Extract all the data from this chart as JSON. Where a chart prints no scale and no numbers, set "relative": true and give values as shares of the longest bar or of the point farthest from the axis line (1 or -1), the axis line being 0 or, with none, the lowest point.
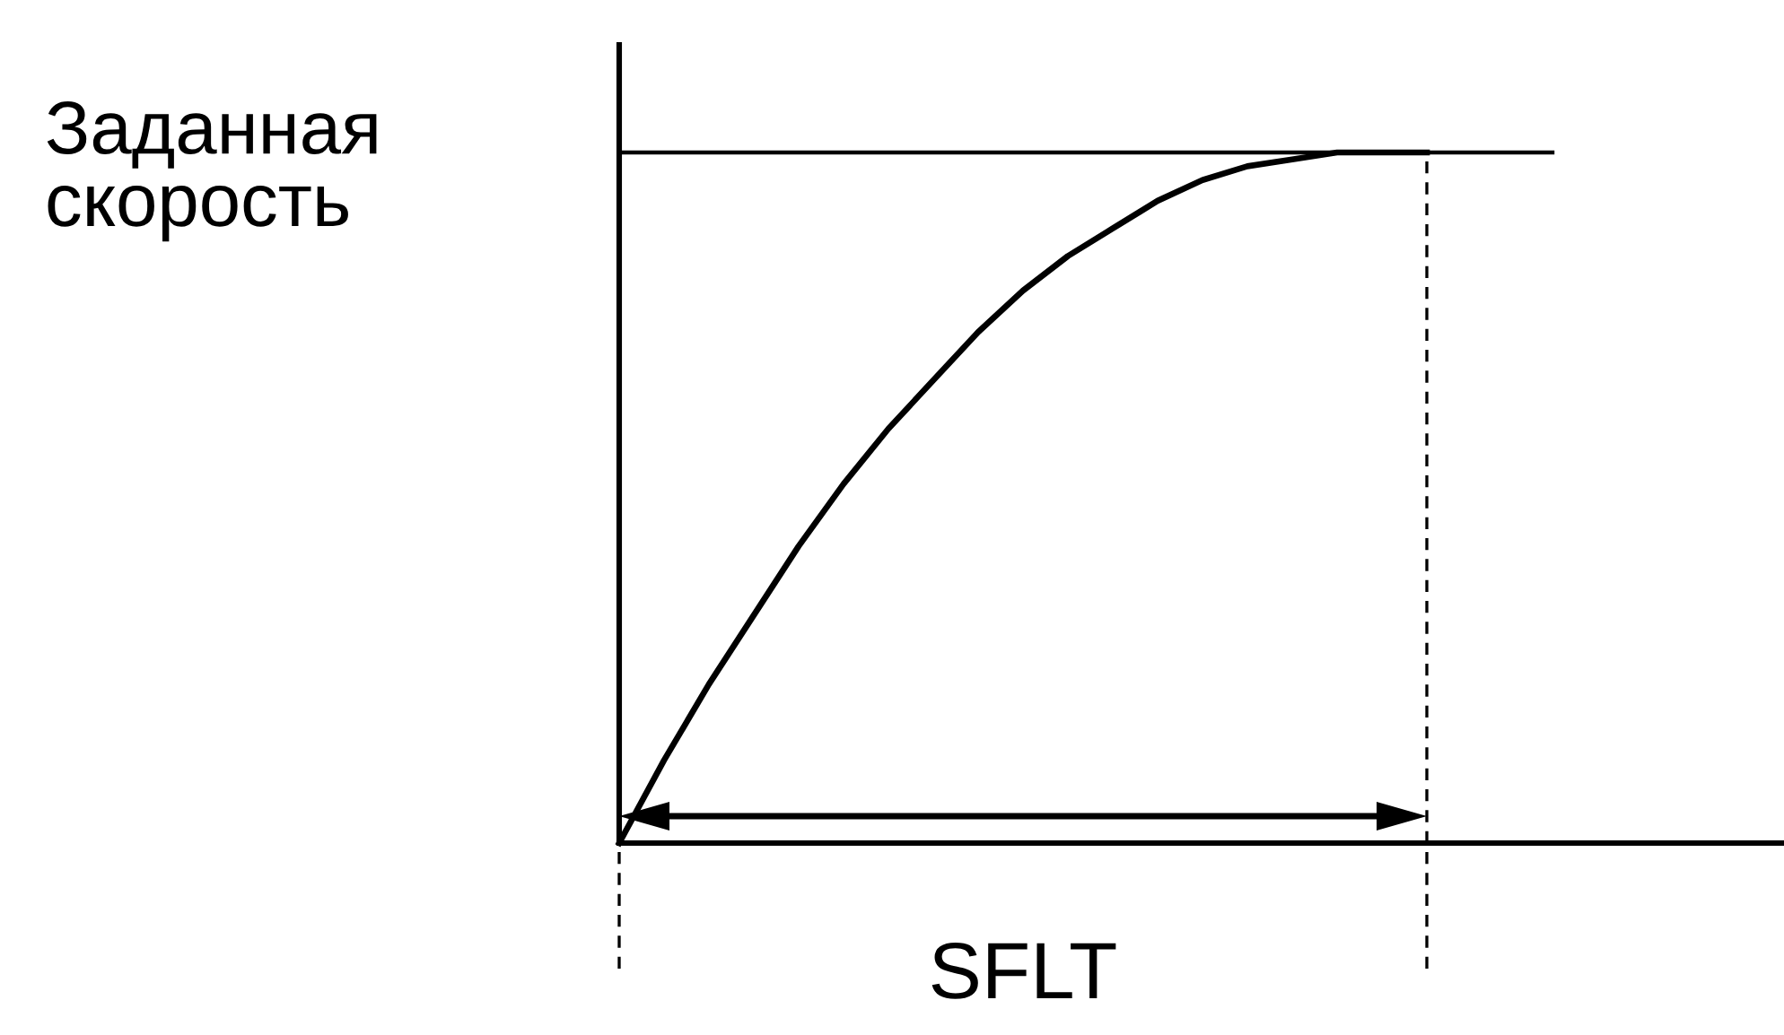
{
  "chart_data": {
    "type": "line",
    "relative": true,
    "ylabel": "Заданная скорость",
    "categories": [
      null,
      null,
      null,
      null,
      null,
      null,
      null,
      null,
      null,
      null,
      null,
      null,
      null,
      null,
      null,
      null,
      null,
      null,
      null
    ],
    "series": [
      {
        "color": "#000000",
        "values": [
          0,
          0.12,
          0.23,
          0.33,
          0.43,
          0.52,
          0.6,
          0.67,
          0.74,
          0.8,
          0.85,
          0.89,
          0.93,
          0.96,
          0.98,
          0.99,
          1,
          1,
          1
        ]
      }
    ],
    "ref_lines": [
      {
        "axis": "y",
        "value": 1,
        "color": "#000000",
        "line_style": "solid"
      }
    ],
    "annotations": [
      "SFLT"
    ],
    "marker": "none",
    "line_style": "solid"
  }
}
